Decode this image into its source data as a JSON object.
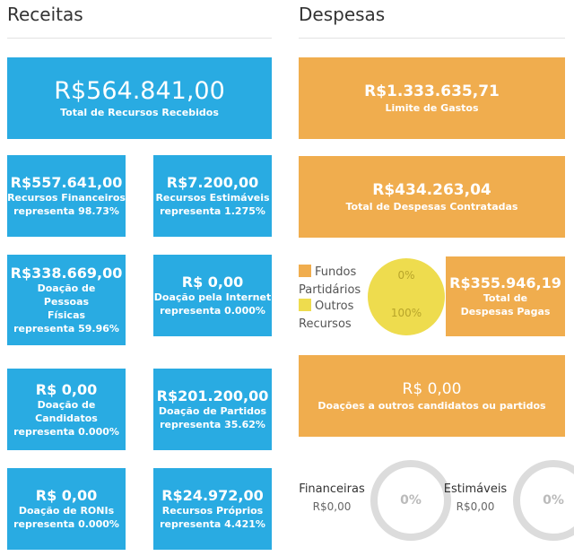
{
  "receitas": {
    "title": "Receitas",
    "total": {
      "amount": "R$564.841,00",
      "label": "Total de Recursos Recebidos"
    },
    "cards": [
      {
        "amount": "R$557.641,00",
        "label": "Recursos Financeiros",
        "pct": "representa 98.73%"
      },
      {
        "amount": "R$7.200,00",
        "label": "Recursos Estimáveis",
        "pct": "representa 1.275%"
      },
      {
        "amount": "R$338.669,00",
        "label": "Doação de Pessoas Físicas",
        "pct": "representa 59.96%"
      },
      {
        "amount": "R$ 0,00",
        "label": "Doação pela Internet",
        "pct": "representa 0.000%"
      },
      {
        "amount": "R$ 0,00",
        "label": "Doação de Candidatos",
        "pct": "representa 0.000%"
      },
      {
        "amount": "R$201.200,00",
        "label": "Doação de Partidos",
        "pct": "representa 35.62%"
      },
      {
        "amount": "R$ 0,00",
        "label": "Doação de RONIs",
        "pct": "representa 0.000%"
      },
      {
        "amount": "R$24.972,00",
        "label": "Recursos Próprios",
        "pct": "representa 4.421%"
      }
    ]
  },
  "despesas": {
    "title": "Despesas",
    "limite": {
      "amount": "R$1.333.635,71",
      "label": "Limite de Gastos"
    },
    "contratadas": {
      "amount": "R$434.263,04",
      "label": "Total de Despesas Contratadas"
    },
    "pagas": {
      "amount": "R$355.946,19",
      "label": "Total de Despesas Pagas"
    },
    "doacoes": {
      "amount": "R$ 0,00",
      "label": "Doações a outros candidatos ou partidos"
    },
    "legend": [
      {
        "label": "Fundos Partidários",
        "color": "#f0ad4e"
      },
      {
        "label": "Outros Recursos",
        "color": "#eedc4e"
      }
    ],
    "pie": {
      "top_pct": "0%",
      "bottom_pct": "100%",
      "fundos_fraction": 0,
      "outros_fraction": 1
    },
    "financeiras": {
      "label": "Financeiras",
      "value": "R$0,00",
      "pct": "0%"
    },
    "estimaveis": {
      "label": "Estimáveis",
      "value": "R$0,00",
      "pct": "0%"
    }
  }
}
